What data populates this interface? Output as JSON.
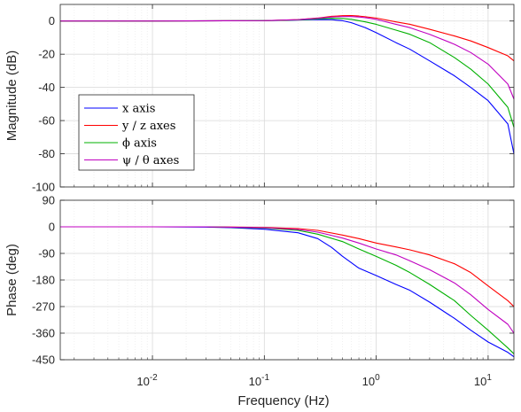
{
  "chart_data": {
    "type": "line",
    "xlabel": "Frequency  (Hz)",
    "xscale": "log",
    "xlim": [
      0.0015,
      17
    ],
    "xticks": [
      {
        "value": 0.01,
        "base": "10",
        "exp": "-2"
      },
      {
        "value": 0.1,
        "base": "10",
        "exp": "-1"
      },
      {
        "value": 1,
        "base": "10",
        "exp": "0"
      },
      {
        "value": 10,
        "base": "10",
        "exp": "1"
      }
    ],
    "grid": true,
    "legend_position": "bottom-left of magnitude panel",
    "legend": [
      {
        "label": "x axis",
        "color": "#0000ff"
      },
      {
        "label": "y / z axes",
        "color": "#ff0000"
      },
      {
        "label": "ϕ axis",
        "color": "#00b000"
      },
      {
        "label": "ψ / θ axes",
        "color": "#c000c0"
      }
    ],
    "panels": [
      {
        "name": "magnitude",
        "ylabel": "Magnitude (dB)",
        "ylim": [
          -100,
          10
        ],
        "yticks": [
          0,
          -20,
          -40,
          -60,
          -80,
          -100
        ],
        "ytick_labels": [
          "0",
          "-20",
          "-40",
          "-60",
          "-80",
          "-100"
        ],
        "series": [
          {
            "color": "#0000ff",
            "x": [
              0.0015,
              0.01,
              0.1,
              0.2,
              0.3,
              0.4,
              0.5,
              0.6,
              0.8,
              1,
              1.5,
              2,
              3,
              5,
              7,
              10,
              15,
              17
            ],
            "y": [
              0,
              0,
              0.2,
              0.6,
              0.9,
              0.8,
              0.2,
              -1,
              -4,
              -7,
              -13,
              -17,
              -24,
              -33,
              -40,
              -48,
              -62,
              -80
            ]
          },
          {
            "color": "#ff0000",
            "x": [
              0.0015,
              0.01,
              0.1,
              0.2,
              0.3,
              0.4,
              0.5,
              0.6,
              0.7,
              0.8,
              1,
              1.5,
              2,
              3,
              5,
              7,
              10,
              15,
              17
            ],
            "y": [
              0,
              0,
              0.2,
              0.8,
              1.8,
              2.8,
              3.2,
              3.3,
              3,
              2.6,
              1.8,
              -0.5,
              -2,
              -5,
              -9,
              -12,
              -16,
              -21,
              -24
            ]
          },
          {
            "color": "#00b000",
            "x": [
              0.0015,
              0.01,
              0.1,
              0.2,
              0.3,
              0.4,
              0.5,
              0.6,
              0.8,
              1,
              1.5,
              2,
              3,
              5,
              7,
              10,
              15,
              17
            ],
            "y": [
              0,
              0,
              0.2,
              0.7,
              1.3,
              1.6,
              1.5,
              1,
              -0.5,
              -2,
              -5.5,
              -8,
              -13,
              -22,
              -29,
              -38,
              -52,
              -64
            ]
          },
          {
            "color": "#c000c0",
            "x": [
              0.0015,
              0.01,
              0.1,
              0.2,
              0.3,
              0.4,
              0.5,
              0.6,
              0.7,
              0.8,
              1,
              1.5,
              2,
              3,
              5,
              7,
              10,
              15,
              17
            ],
            "y": [
              0,
              0,
              0.2,
              0.8,
              1.7,
              2.4,
              2.7,
              2.7,
              2.4,
              2,
              1,
              -2,
              -4,
              -8,
              -14,
              -19,
              -26,
              -38,
              -47
            ]
          }
        ]
      },
      {
        "name": "phase",
        "ylabel": "Phase (deg)",
        "ylim": [
          -450,
          90
        ],
        "yticks": [
          90,
          0,
          -90,
          -180,
          -270,
          -360,
          -450
        ],
        "ytick_labels": [
          "90",
          "0",
          "-90",
          "-180",
          "-270",
          "-360",
          "-450"
        ],
        "series": [
          {
            "color": "#0000ff",
            "x": [
              0.0015,
              0.01,
              0.03,
              0.05,
              0.1,
              0.2,
              0.3,
              0.4,
              0.5,
              0.7,
              1,
              1.5,
              2,
              3,
              5,
              7,
              10,
              15,
              17
            ],
            "y": [
              0,
              0,
              -1,
              -3,
              -8,
              -20,
              -40,
              -70,
              -100,
              -140,
              -165,
              -195,
              -215,
              -255,
              -310,
              -350,
              -390,
              -425,
              -440
            ]
          },
          {
            "color": "#ff0000",
            "x": [
              0.0015,
              0.01,
              0.03,
              0.1,
              0.2,
              0.3,
              0.5,
              0.7,
              1,
              1.5,
              2,
              3,
              5,
              7,
              10,
              15,
              17
            ],
            "y": [
              0,
              0,
              0,
              -2,
              -6,
              -12,
              -28,
              -40,
              -55,
              -68,
              -78,
              -95,
              -125,
              -155,
              -200,
              -250,
              -270
            ]
          },
          {
            "color": "#00b000",
            "x": [
              0.0015,
              0.01,
              0.03,
              0.1,
              0.2,
              0.3,
              0.5,
              0.7,
              1,
              1.5,
              2,
              3,
              5,
              7,
              10,
              15,
              17
            ],
            "y": [
              0,
              0,
              0,
              -4,
              -12,
              -25,
              -50,
              -75,
              -100,
              -130,
              -155,
              -195,
              -250,
              -300,
              -350,
              -410,
              -430
            ]
          },
          {
            "color": "#c000c0",
            "x": [
              0.0015,
              0.01,
              0.03,
              0.1,
              0.2,
              0.3,
              0.5,
              0.7,
              1,
              1.5,
              2,
              3,
              5,
              7,
              10,
              15,
              17
            ],
            "y": [
              0,
              0,
              0,
              -3,
              -9,
              -18,
              -38,
              -55,
              -75,
              -95,
              -115,
              -145,
              -190,
              -230,
              -280,
              -330,
              -360
            ]
          }
        ]
      }
    ]
  }
}
